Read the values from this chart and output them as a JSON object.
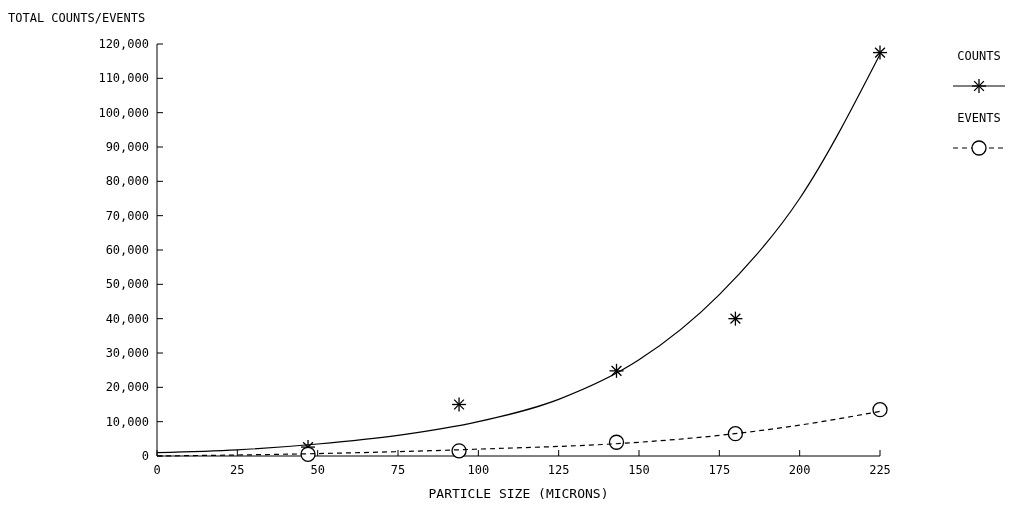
{
  "chart_data": {
    "type": "scatter",
    "ylabel": "TOTAL COUNTS/EVENTS",
    "xlabel": "PARTICLE SIZE (MICRONS)",
    "xlim": [
      0,
      225
    ],
    "xticks": [
      0,
      25,
      50,
      75,
      100,
      125,
      150,
      175,
      200,
      225
    ],
    "ylim": [
      0,
      120000
    ],
    "yticks": [
      0,
      {
        "value": 10000,
        "label": "10,000"
      },
      {
        "value": 20000,
        "label": "20,000"
      },
      {
        "value": 30000,
        "label": "30,000"
      },
      {
        "value": 40000,
        "label": "40,000"
      },
      {
        "value": 50000,
        "label": "50,000"
      },
      {
        "value": 60000,
        "label": "60,000"
      },
      {
        "value": 70000,
        "label": "70,000"
      },
      {
        "value": 80000,
        "label": "80,000"
      },
      {
        "value": 90000,
        "label": "90,000"
      },
      {
        "value": 100000,
        "label": "100,000"
      },
      {
        "value": 110000,
        "label": "110,000"
      },
      {
        "value": 120000,
        "label": "120,000"
      }
    ],
    "grid": false,
    "legend": "top right",
    "series": [
      {
        "name": "COUNTS",
        "marker": "cross",
        "line_style": "solid",
        "color": "#000000",
        "x": [
          47,
          94,
          143,
          180,
          225
        ],
        "values": [
          2600,
          15000,
          24800,
          40000,
          117500
        ]
      },
      {
        "name": "EVENTS",
        "marker": "circle",
        "line_style": "dashed",
        "color": "#000000",
        "x": [
          47,
          94,
          143,
          180,
          225
        ],
        "values": [
          500,
          1500,
          4000,
          6500,
          13500
        ]
      },
      {
        "type": "line",
        "marker": "none",
        "line_style": "solid",
        "color": "#000000",
        "x": [
          0,
          25,
          50,
          75,
          100,
          125,
          150,
          175,
          200,
          225
        ],
        "values": [
          1000,
          1800,
          3500,
          6000,
          10000,
          16500,
          28000,
          47000,
          75000,
          117000
        ]
      },
      {
        "type": "line",
        "marker": "none",
        "line_style": "dashed",
        "color": "#000000",
        "x": [
          0,
          50,
          100,
          150,
          175,
          200,
          225
        ],
        "values": [
          0,
          700,
          2000,
          4000,
          6000,
          9000,
          13000
        ]
      }
    ]
  }
}
